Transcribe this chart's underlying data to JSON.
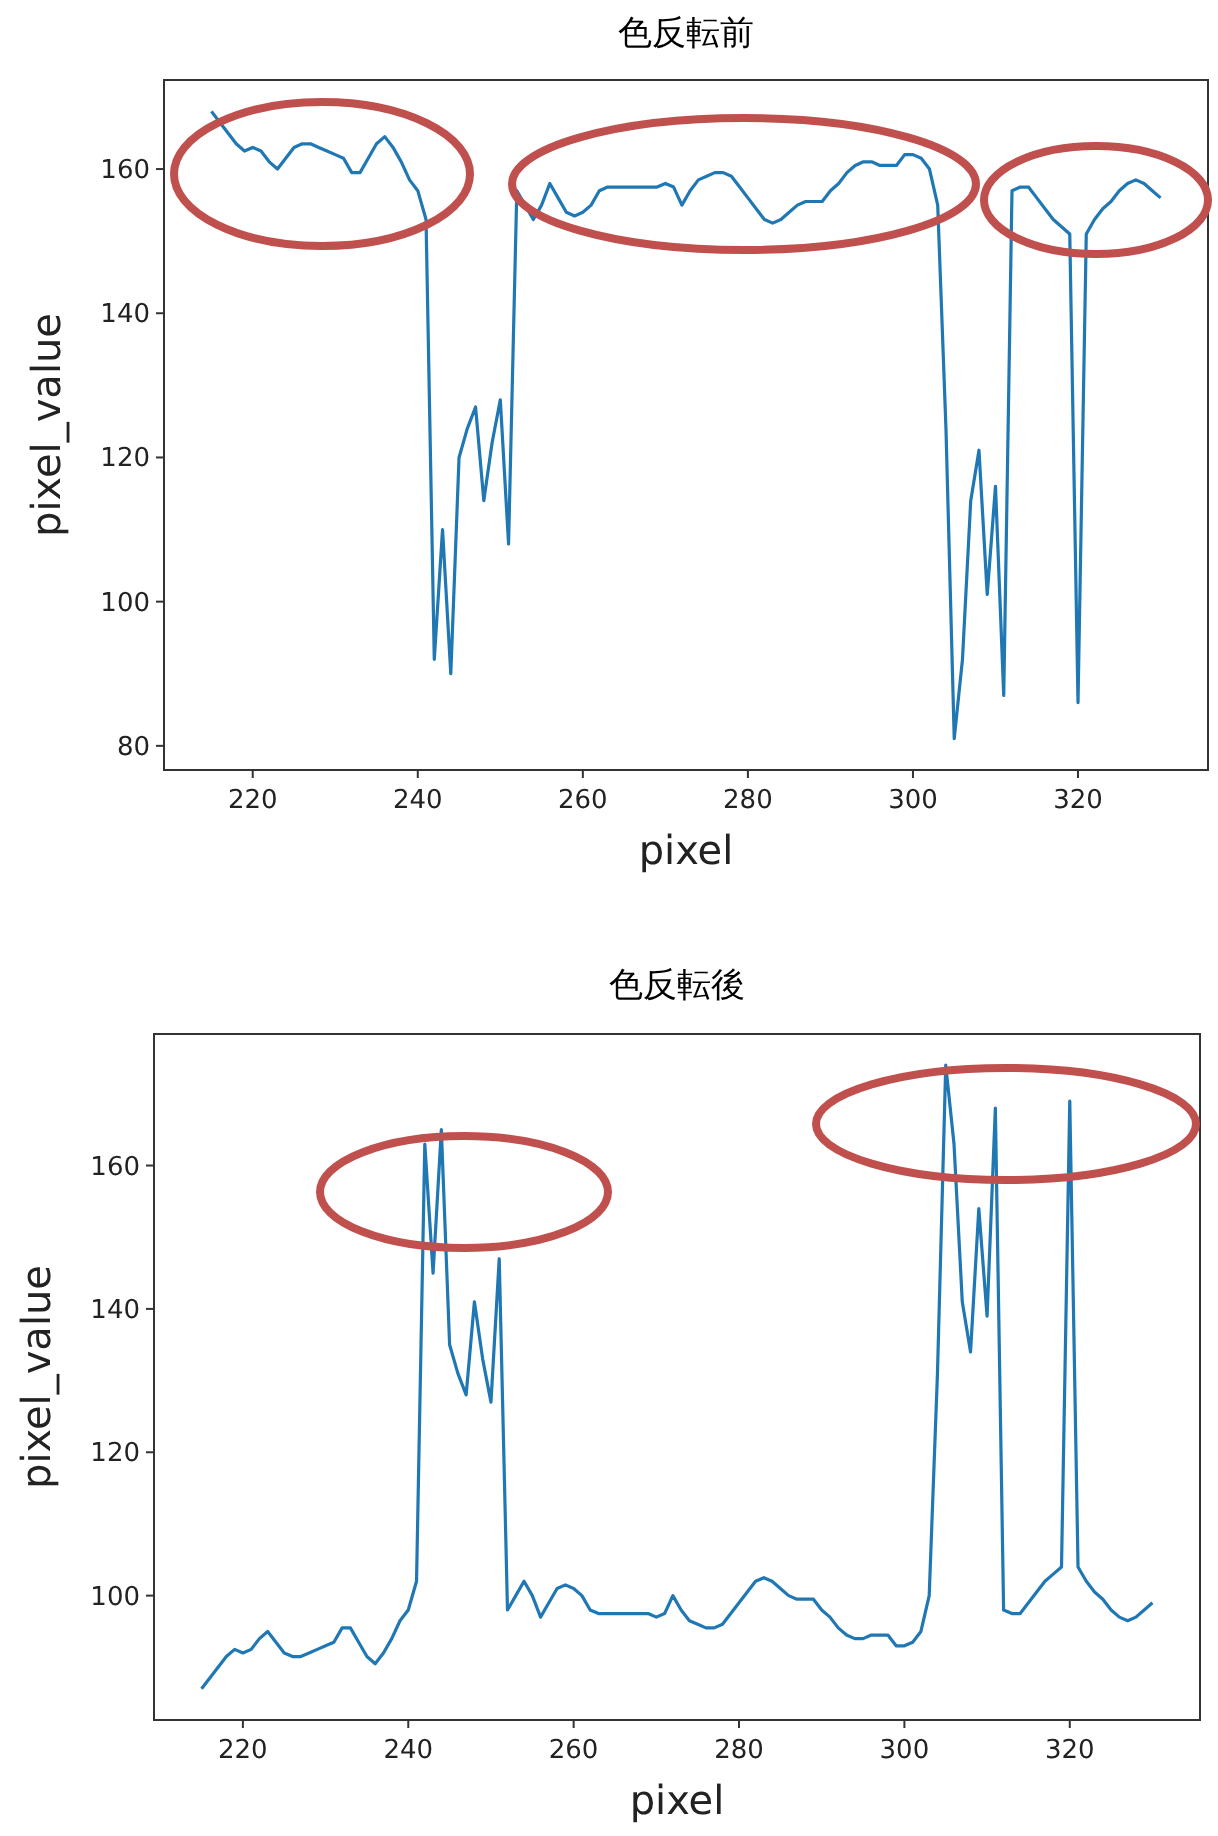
{
  "chart_data": [
    {
      "type": "line",
      "title": "色反転前",
      "xlabel": "pixel",
      "ylabel": "pixel_value",
      "xlim": [
        209.25,
        335.75
      ],
      "ylim": [
        76.65,
        172.35
      ],
      "xticks": [
        220,
        240,
        260,
        280,
        300,
        320
      ],
      "yticks": [
        80,
        100,
        120,
        140,
        160
      ],
      "grid": false,
      "marker": "none",
      "line_style": "solid",
      "x": [
        215,
        216,
        217,
        218,
        219,
        220,
        221,
        222,
        223,
        224,
        225,
        226,
        227,
        228,
        229,
        230,
        231,
        232,
        233,
        234,
        235,
        236,
        237,
        238,
        239,
        240,
        241,
        242,
        243,
        244,
        245,
        246,
        247,
        248,
        249,
        250,
        251,
        252,
        253,
        254,
        255,
        256,
        257,
        258,
        259,
        260,
        261,
        262,
        263,
        264,
        265,
        266,
        267,
        268,
        269,
        270,
        271,
        272,
        273,
        274,
        275,
        276,
        277,
        278,
        279,
        280,
        281,
        282,
        283,
        284,
        285,
        286,
        287,
        288,
        289,
        290,
        291,
        292,
        293,
        294,
        295,
        296,
        297,
        298,
        299,
        300,
        301,
        302,
        303,
        304,
        305,
        306,
        307,
        308,
        309,
        310,
        311,
        312,
        313,
        314,
        315,
        316,
        317,
        318,
        319,
        320,
        321,
        322,
        323,
        324,
        325,
        326,
        327,
        328,
        329,
        330
      ],
      "series": [
        {
          "color": "#1f77b4",
          "values": [
            168,
            166.5,
            165,
            163.5,
            162.5,
            163,
            162.5,
            161,
            160,
            161.5,
            163,
            163.5,
            163.5,
            163,
            162.5,
            162,
            161.5,
            159.5,
            159.5,
            161.5,
            163.5,
            164.5,
            163,
            161,
            158.5,
            157,
            153,
            92,
            110,
            90,
            120,
            124,
            127,
            114,
            122,
            128,
            108,
            157,
            155,
            153,
            155,
            158,
            156,
            154,
            153.5,
            154,
            155,
            157,
            157.5,
            157.5,
            157.5,
            157.5,
            157.5,
            157.5,
            157.5,
            158,
            157.5,
            155,
            157,
            158.5,
            159,
            159.5,
            159.5,
            159,
            157.5,
            156,
            154.5,
            153,
            152.5,
            153,
            154,
            155,
            155.5,
            155.5,
            155.5,
            157,
            158,
            159.5,
            160.5,
            161,
            161,
            160.5,
            160.5,
            160.5,
            162,
            162,
            161.5,
            160,
            155,
            124,
            81,
            92,
            114,
            121,
            101,
            116,
            87,
            157,
            157.5,
            157.5,
            156,
            154.5,
            153,
            152,
            151,
            86,
            151,
            153,
            154.5,
            155.5,
            157,
            158,
            158.5,
            158,
            157,
            156
          ]
        }
      ]
    },
    {
      "type": "line",
      "title": "色反転後",
      "xlabel": "pixel",
      "ylabel": "pixel_value",
      "xlim": [
        209.25,
        335.75
      ],
      "ylim": [
        82.65,
        178.35
      ],
      "xticks": [
        220,
        240,
        260,
        280,
        300,
        320
      ],
      "yticks": [
        100,
        120,
        140,
        160
      ],
      "grid": false,
      "marker": "none",
      "line_style": "solid",
      "x": [
        215,
        216,
        217,
        218,
        219,
        220,
        221,
        222,
        223,
        224,
        225,
        226,
        227,
        228,
        229,
        230,
        231,
        232,
        233,
        234,
        235,
        236,
        237,
        238,
        239,
        240,
        241,
        242,
        243,
        244,
        245,
        246,
        247,
        248,
        249,
        250,
        251,
        252,
        253,
        254,
        255,
        256,
        257,
        258,
        259,
        260,
        261,
        262,
        263,
        264,
        265,
        266,
        267,
        268,
        269,
        270,
        271,
        272,
        273,
        274,
        275,
        276,
        277,
        278,
        279,
        280,
        281,
        282,
        283,
        284,
        285,
        286,
        287,
        288,
        289,
        290,
        291,
        292,
        293,
        294,
        295,
        296,
        297,
        298,
        299,
        300,
        301,
        302,
        303,
        304,
        305,
        306,
        307,
        308,
        309,
        310,
        311,
        312,
        313,
        314,
        315,
        316,
        317,
        318,
        319,
        320,
        321,
        322,
        323,
        324,
        325,
        326,
        327,
        328,
        329,
        330
      ],
      "series": [
        {
          "color": "#1f77b4",
          "values": [
            87,
            88.5,
            90,
            91.5,
            92.5,
            92,
            92.5,
            94,
            95,
            93.5,
            92,
            91.5,
            91.5,
            92,
            92.5,
            93,
            93.5,
            95.5,
            95.5,
            93.5,
            91.5,
            90.5,
            92,
            94,
            96.5,
            98,
            102,
            163,
            145,
            165,
            135,
            131,
            128,
            141,
            133,
            127,
            147,
            98,
            100,
            102,
            100,
            97,
            99,
            101,
            101.5,
            101,
            100,
            98,
            97.5,
            97.5,
            97.5,
            97.5,
            97.5,
            97.5,
            97.5,
            97,
            97.5,
            100,
            98,
            96.5,
            96,
            95.5,
            95.5,
            96,
            97.5,
            99,
            100.5,
            102,
            102.5,
            102,
            101,
            100,
            99.5,
            99.5,
            99.5,
            98,
            97,
            95.5,
            94.5,
            94,
            94,
            94.5,
            94.5,
            94.5,
            93,
            93,
            93.5,
            95,
            100,
            131,
            174,
            163,
            141,
            134,
            154,
            139,
            168,
            98,
            97.5,
            97.5,
            99,
            100.5,
            102,
            103,
            104,
            169,
            104,
            102,
            100.5,
            99.5,
            98,
            97,
            96.5,
            97,
            98,
            99
          ]
        }
      ]
    }
  ]
}
